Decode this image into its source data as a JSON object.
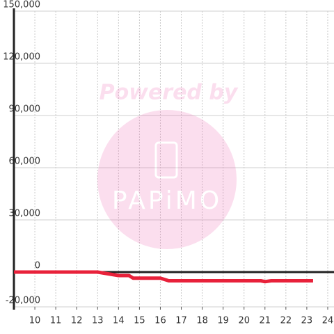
{
  "chart_data": {
    "type": "line",
    "watermark": {
      "text": "Powered by",
      "brand": "PAPiMO"
    },
    "x": [
      9,
      13,
      13.5,
      14,
      14.5,
      14.7,
      16,
      16.4,
      20.8,
      21,
      21.3,
      23.3
    ],
    "series": [
      {
        "name": "value",
        "color": "#e8213a",
        "values": [
          0,
          0,
          -1000,
          -2000,
          -2000,
          -3500,
          -3500,
          -5000,
          -5000,
          -5500,
          -5000,
          -5000
        ]
      }
    ],
    "xlim": [
      9,
      24.3
    ],
    "xticks": [
      10,
      11,
      12,
      13,
      14,
      15,
      16,
      17,
      18,
      19,
      20,
      21,
      22,
      23,
      24
    ],
    "ylim": [
      -20000,
      150000
    ],
    "yticks": [
      {
        "value": -20000,
        "label": "-20,000"
      },
      0,
      {
        "value": 30000,
        "label": "30,000"
      },
      {
        "value": 60000,
        "label": "60,000"
      },
      {
        "value": 90000,
        "label": "90,000"
      },
      {
        "value": 120000,
        "label": "120,000"
      },
      {
        "value": 150000,
        "label": "150,000"
      }
    ],
    "grid": true
  }
}
